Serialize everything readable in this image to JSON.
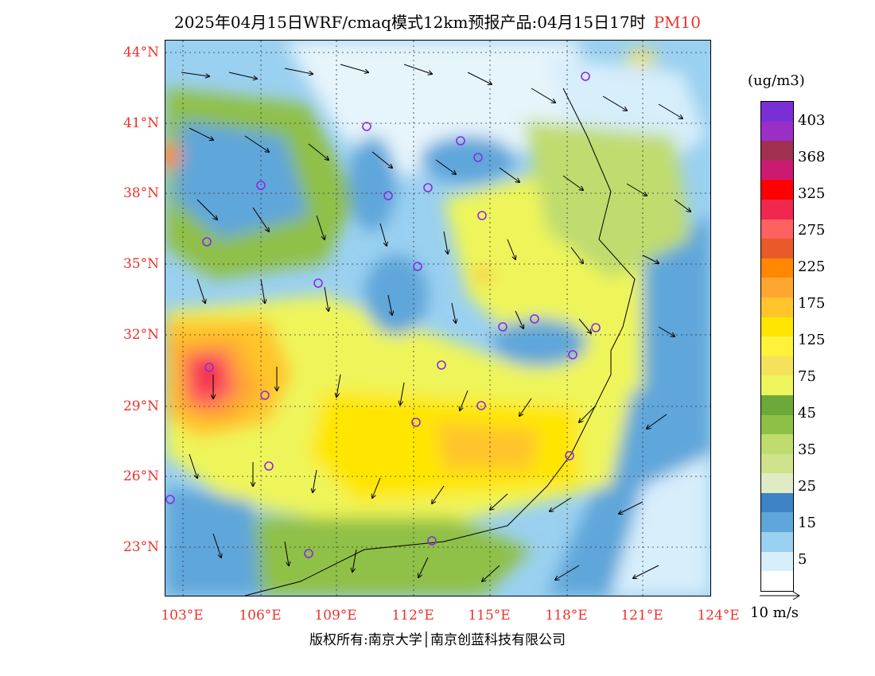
{
  "title": {
    "main": "2025年04月15日WRF/cmaq模式12km预报产品:04月15日17时",
    "pollutant": "PM10"
  },
  "lat_labels": [
    "44°N",
    "41°N",
    "38°N",
    "35°N",
    "32°N",
    "29°N",
    "26°N",
    "23°N"
  ],
  "lon_labels": [
    "103°E",
    "106°E",
    "109°E",
    "112°E",
    "115°E",
    "118°E",
    "121°E",
    "124°E"
  ],
  "colorbar": {
    "unit": "(ug/m3)",
    "labels": [
      "403",
      "368",
      "325",
      "275",
      "225",
      "175",
      "125",
      "75",
      "45",
      "35",
      "25",
      "15",
      "5"
    ],
    "colors": [
      "#7a2fd6",
      "#9a2fc7",
      "#a0304f",
      "#cc1a73",
      "#ff0000",
      "#f0284f",
      "#ff6161",
      "#e85a2a",
      "#ff8800",
      "#ffa631",
      "#ffc52a",
      "#ffe600",
      "#fff23a",
      "#f5e25a",
      "#eef55a",
      "#6da83a",
      "#8fc046",
      "#bfdc6e",
      "#cfe28c",
      "#dfecc3",
      "#3d83c6",
      "#5ea6da",
      "#9ad0f0",
      "#d7eefb",
      "#ffffff"
    ]
  },
  "wind_key": {
    "label": "10 m/s"
  },
  "copyright": "版权所有:南京大学│南京创蓝科技有限公司"
}
